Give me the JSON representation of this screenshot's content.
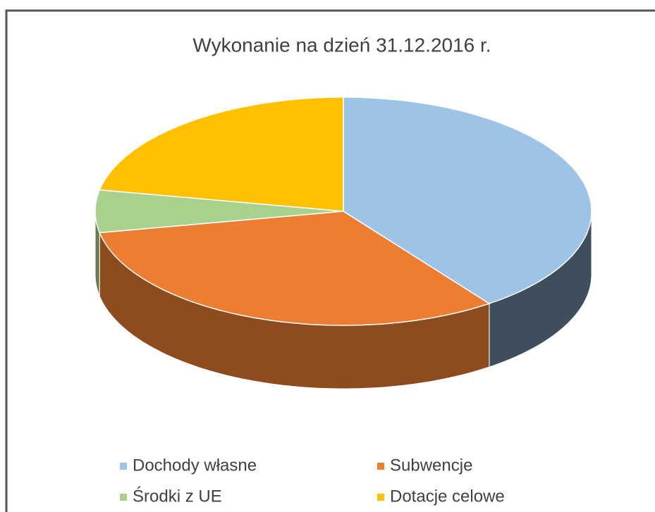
{
  "chart_data": {
    "type": "pie3d",
    "title": "Wykonanie na dzień 31.12.2016 r.",
    "categories": [
      "Dochody własne",
      "Subwencje",
      "Środki z UE",
      "Dotacje celowe"
    ],
    "values": [
      40,
      32,
      6,
      22
    ],
    "colors": [
      "#9dc3e6",
      "#ed7d31",
      "#a9d18e",
      "#ffc000"
    ],
    "legend": "bottom"
  }
}
